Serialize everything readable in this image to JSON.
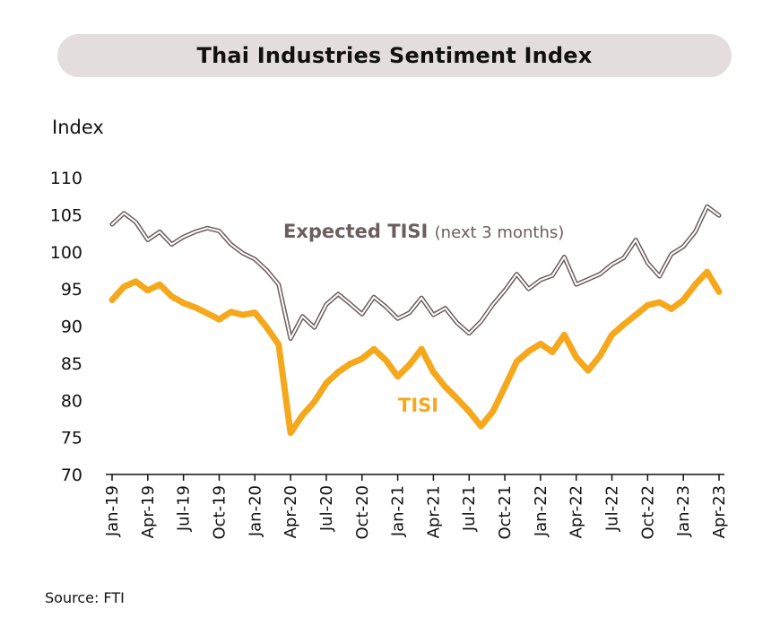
{
  "title": "Thai Industries Sentiment Index",
  "y_unit": "Index",
  "source": "Source: FTI",
  "chart_data": {
    "type": "line",
    "title": "Thai Industries Sentiment Index",
    "ylabel": "Index",
    "ylim": [
      70,
      110
    ],
    "yticks": [
      70,
      75,
      80,
      85,
      90,
      95,
      100,
      105,
      110
    ],
    "x_ticks": [
      "Jan-19",
      "Apr-19",
      "Jul-19",
      "Oct-19",
      "Jan-20",
      "Apr-20",
      "Jul-20",
      "Oct-20",
      "Jan-21",
      "Apr-21",
      "Jul-21",
      "Oct-21",
      "Jan-22",
      "Apr-22",
      "Jul-22",
      "Oct-22",
      "Jan-23",
      "Apr-23"
    ],
    "x": [
      "Jan-19",
      "Feb-19",
      "Mar-19",
      "Apr-19",
      "May-19",
      "Jun-19",
      "Jul-19",
      "Aug-19",
      "Sep-19",
      "Oct-19",
      "Nov-19",
      "Dec-19",
      "Jan-20",
      "Feb-20",
      "Mar-20",
      "Apr-20",
      "May-20",
      "Jun-20",
      "Jul-20",
      "Aug-20",
      "Sep-20",
      "Oct-20",
      "Nov-20",
      "Dec-20",
      "Jan-21",
      "Feb-21",
      "Mar-21",
      "Apr-21",
      "May-21",
      "Jun-21",
      "Jul-21",
      "Aug-21",
      "Sep-21",
      "Oct-21",
      "Nov-21",
      "Dec-21",
      "Jan-22",
      "Feb-22",
      "Mar-22",
      "Apr-22",
      "May-22",
      "Jun-22",
      "Jul-22",
      "Aug-22",
      "Sep-22",
      "Oct-22",
      "Nov-22",
      "Dec-22",
      "Jan-23",
      "Feb-23",
      "Mar-23",
      "Apr-23"
    ],
    "grid": false,
    "legend": "inline labels",
    "series": [
      {
        "name": "Expected TISI",
        "name_suffix": "(next 3 months)",
        "color": "#6b5e5e",
        "style": "double-line",
        "values": [
          103.7,
          105.2,
          104.0,
          101.6,
          102.7,
          101.0,
          102.0,
          102.7,
          103.2,
          102.8,
          101.0,
          99.8,
          99.0,
          97.5,
          95.6,
          88.3,
          91.3,
          89.8,
          92.9,
          94.3,
          93.0,
          91.6,
          93.9,
          92.6,
          91.0,
          91.8,
          93.8,
          91.5,
          92.4,
          90.4,
          89.0,
          90.6,
          92.9,
          94.8,
          97.0,
          95.0,
          96.2,
          96.8,
          99.3,
          95.6,
          96.3,
          97.0,
          98.3,
          99.2,
          101.6,
          98.5,
          96.7,
          99.7,
          100.7,
          102.7,
          106.1,
          104.9
        ]
      },
      {
        "name": "TISI",
        "color": "#f5a81c",
        "style": "thick",
        "values": [
          93.5,
          95.3,
          96.0,
          94.8,
          95.6,
          94.0,
          93.1,
          92.5,
          91.7,
          90.9,
          91.9,
          91.5,
          91.8,
          89.8,
          87.5,
          75.6,
          78.0,
          79.8,
          82.3,
          83.8,
          84.9,
          85.6,
          86.9,
          85.4,
          83.2,
          84.8,
          86.9,
          83.8,
          81.8,
          80.2,
          78.5,
          76.5,
          78.5,
          81.8,
          85.2,
          86.6,
          87.6,
          86.5,
          88.8,
          85.8,
          84.0,
          86.0,
          88.8,
          90.2,
          91.5,
          92.8,
          93.2,
          92.3,
          93.5,
          95.6,
          97.3,
          94.6
        ]
      }
    ]
  }
}
